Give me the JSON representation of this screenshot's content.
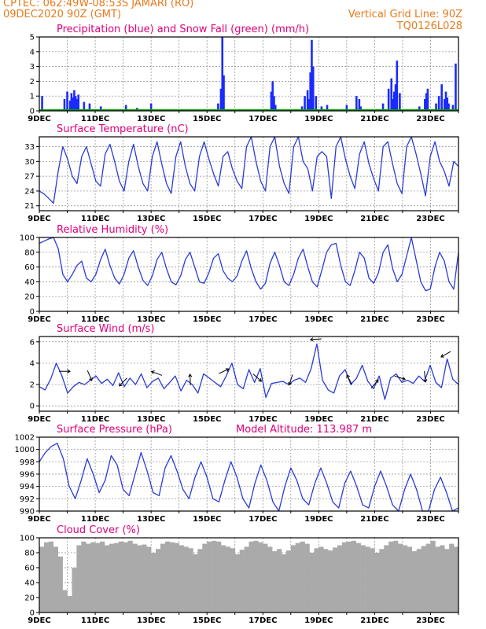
{
  "header": {
    "line1": "CPTEC:   062:49W-08:53S   JAMARI (RO)",
    "line2": "09DEC2020 90Z (GMT)",
    "grid_note": "Vertical Grid Line: 90Z",
    "code": "TQ0126L028"
  },
  "colors": {
    "header": "#e87a1c",
    "title": "#e0007a",
    "precip": "#1a2bff",
    "snow": "#00a000",
    "line": "#2a3bd8",
    "cloud": "#aaaaaa",
    "grid": "#8a8a8a"
  },
  "x_ticks": [
    "9DEC",
    "11DEC",
    "13DEC",
    "15DEC",
    "17DEC",
    "19DEC",
    "21DEC",
    "23DEC"
  ],
  "x_range_days": [
    9,
    24
  ],
  "model_altitude": "Model Altitude: 113.987 m",
  "chart_data": [
    {
      "id": "precip",
      "type": "bar",
      "title": "Precipitation (blue) and Snow Fall (green) (mm/h)",
      "ylim": [
        0,
        5
      ],
      "yticks": [
        "0",
        "1",
        "2",
        "3",
        "4",
        "5"
      ],
      "series": [
        {
          "name": "Precipitation",
          "x": [
            9.1,
            9.9,
            10.0,
            10.1,
            10.15,
            10.2,
            10.25,
            10.3,
            10.35,
            10.4,
            10.6,
            10.8,
            11.2,
            12.1,
            12.5,
            13.0,
            15.4,
            15.5,
            15.55,
            15.6,
            17.3,
            17.35,
            17.4,
            17.45,
            18.4,
            18.5,
            18.6,
            18.65,
            18.7,
            18.75,
            18.8,
            18.9,
            19.1,
            19.3,
            20.0,
            20.35,
            20.45,
            20.5,
            21.3,
            21.5,
            21.6,
            21.65,
            21.7,
            21.75,
            21.8,
            21.9,
            22.6,
            22.8,
            22.85,
            22.9,
            23.2,
            23.3,
            23.4,
            23.5,
            23.55,
            23.6,
            23.65,
            23.8,
            23.9
          ],
          "values": [
            1.0,
            0.8,
            1.3,
            0.7,
            1.2,
            0.9,
            1.4,
            1.0,
            0.8,
            1.1,
            0.6,
            0.5,
            0.3,
            0.4,
            0.2,
            0.5,
            0.5,
            1.5,
            5.0,
            2.4,
            1.3,
            2.0,
            1.0,
            0.4,
            0.3,
            1.0,
            1.4,
            0.8,
            2.6,
            4.8,
            3.0,
            1.0,
            0.3,
            0.4,
            0.4,
            1.0,
            0.8,
            0.3,
            0.5,
            1.5,
            2.2,
            0.8,
            1.3,
            1.8,
            3.4,
            1.2,
            0.3,
            0.8,
            1.2,
            1.5,
            0.5,
            1.0,
            1.8,
            0.8,
            1.3,
            0.9,
            0.5,
            0.4,
            3.2
          ]
        },
        {
          "name": "Snow Fall",
          "x": [
            9.0,
            24.0
          ],
          "values": [
            0,
            0
          ]
        }
      ]
    },
    {
      "id": "temp",
      "type": "line",
      "title": "Surface Temperature (nC)",
      "ylim": [
        20,
        35
      ],
      "yticks": [
        "21",
        "24",
        "27",
        "30",
        "33"
      ],
      "series": [
        {
          "name": "Temperature",
          "values": [
            24.0,
            23.4,
            22.5,
            21.5,
            28.0,
            33.0,
            30.5,
            27.0,
            25.5,
            31.0,
            33.0,
            29.5,
            26.0,
            25.0,
            31.5,
            33.5,
            30.0,
            26.0,
            24.0,
            30.0,
            33.5,
            29.0,
            25.5,
            24.0,
            31.0,
            34.0,
            29.5,
            25.5,
            23.5,
            31.0,
            34.0,
            29.0,
            25.5,
            24.0,
            31.0,
            34.0,
            30.5,
            27.5,
            25.0,
            31.0,
            32.0,
            28.5,
            26.0,
            24.5,
            33.0,
            35.0,
            30.0,
            26.0,
            24.0,
            33.0,
            35.0,
            29.0,
            25.5,
            23.5,
            33.0,
            35.0,
            30.0,
            28.5,
            24.0,
            31.0,
            32.0,
            31.0,
            22.5,
            33.0,
            35.0,
            30.5,
            27.0,
            24.5,
            31.5,
            34.0,
            29.5,
            26.5,
            24.0,
            33.0,
            34.0,
            29.5,
            25.5,
            23.5,
            33.0,
            35.0,
            31.5,
            27.5,
            23.0,
            31.0,
            34.0,
            30.0,
            28.0,
            25.0,
            30.0,
            29.0
          ]
        }
      ]
    },
    {
      "id": "rh",
      "type": "line",
      "title": "Relative Humidity (%)",
      "ylim": [
        0,
        100
      ],
      "yticks": [
        "0",
        "20",
        "40",
        "60",
        "80",
        "100"
      ],
      "series": [
        {
          "name": "Relative Humidity",
          "values": [
            92,
            95,
            98,
            100,
            85,
            50,
            40,
            50,
            62,
            68,
            45,
            40,
            50,
            70,
            84,
            62,
            45,
            37,
            50,
            72,
            82,
            60,
            42,
            35,
            48,
            70,
            80,
            58,
            40,
            36,
            48,
            70,
            80,
            60,
            40,
            38,
            52,
            72,
            78,
            55,
            45,
            40,
            48,
            68,
            82,
            58,
            40,
            30,
            38,
            65,
            80,
            62,
            40,
            35,
            50,
            72,
            84,
            60,
            40,
            33,
            56,
            80,
            90,
            92,
            62,
            40,
            35,
            55,
            80,
            72,
            45,
            38,
            52,
            80,
            90,
            58,
            40,
            50,
            75,
            100,
            70,
            40,
            28,
            30,
            60,
            80,
            68,
            40,
            30,
            80
          ]
        }
      ]
    },
    {
      "id": "wind",
      "type": "line",
      "title": "Surface Wind (m/s)",
      "ylim": [
        -0.5,
        6.5
      ],
      "yticks": [
        "0",
        "2",
        "4",
        "6"
      ],
      "series": [
        {
          "name": "Wind Speed",
          "values": [
            1.8,
            1.5,
            2.5,
            4.0,
            2.8,
            1.2,
            1.8,
            2.2,
            2.0,
            2.4,
            2.8,
            2.1,
            2.5,
            1.9,
            3.1,
            1.8,
            2.6,
            2.0,
            3.0,
            1.7,
            2.3,
            2.6,
            1.6,
            2.2,
            2.8,
            1.4,
            2.4,
            2.0,
            1.2,
            3.0,
            2.6,
            2.2,
            1.8,
            2.8,
            4.0,
            2.0,
            1.6,
            3.4,
            2.2,
            3.5,
            0.8,
            2.1,
            2.2,
            2.3,
            2.0,
            2.4,
            2.6,
            2.2,
            3.5,
            5.8,
            2.4,
            1.5,
            1.2,
            2.8,
            3.4,
            2.0,
            2.6,
            3.8,
            2.3,
            1.6,
            2.8,
            0.6,
            2.6,
            3.0,
            2.2,
            2.4,
            2.1,
            2.8,
            2.3,
            3.8,
            2.2,
            1.7,
            4.4,
            2.5,
            2.0
          ]
        }
      ]
    },
    {
      "id": "pres",
      "type": "line",
      "title": "Surface Pressure (hPa)",
      "ylim": [
        990,
        1002
      ],
      "yticks": [
        "990",
        "992",
        "994",
        "996",
        "998",
        "1000",
        "1002"
      ],
      "series": [
        {
          "name": "Surface Pressure",
          "values": [
            998.0,
            999.5,
            1000.5,
            1001.0,
            998.5,
            994.0,
            992.0,
            995.0,
            998.5,
            996.0,
            993.0,
            995.0,
            999.0,
            997.5,
            993.5,
            992.5,
            996.0,
            999.5,
            996.5,
            993.0,
            992.5,
            997.0,
            999.0,
            996.5,
            993.5,
            992.0,
            995.5,
            998.0,
            995.5,
            992.0,
            991.5,
            995.0,
            998.0,
            995.5,
            992.0,
            990.5,
            994.5,
            997.5,
            995.0,
            991.5,
            990.0,
            994.0,
            997.0,
            995.0,
            992.0,
            991.0,
            994.5,
            997.0,
            994.5,
            991.5,
            990.5,
            994.5,
            996.5,
            994.0,
            991.0,
            990.5,
            994.0,
            996.5,
            994.0,
            991.0,
            990.0,
            993.5,
            996.0,
            993.5,
            990.0,
            989.5,
            993.5,
            995.5,
            993.0,
            990.0,
            990.5
          ]
        }
      ]
    },
    {
      "id": "cloud",
      "type": "area",
      "title": "Cloud Cover (%)",
      "ylim": [
        0,
        100
      ],
      "yticks": [
        "0",
        "20",
        "40",
        "60",
        "80",
        "100"
      ],
      "series": [
        {
          "name": "Cloud Cover",
          "values": [
            88,
            94,
            95,
            88,
            75,
            30,
            22,
            60,
            90,
            95,
            92,
            94,
            93,
            95,
            90,
            92,
            93,
            95,
            94,
            96,
            92,
            90,
            91,
            88,
            80,
            85,
            92,
            95,
            94,
            93,
            90,
            88,
            86,
            78,
            85,
            92,
            95,
            96,
            95,
            90,
            88,
            86,
            78,
            84,
            88,
            95,
            96,
            94,
            92,
            88,
            82,
            85,
            78,
            83,
            90,
            93,
            95,
            92,
            80,
            86,
            88,
            85,
            83,
            87,
            90,
            94,
            95,
            96,
            93,
            90,
            88,
            86,
            80,
            85,
            90,
            95,
            96,
            92,
            90,
            88,
            82,
            85,
            89,
            92,
            96,
            88,
            90,
            85,
            92,
            88
          ]
        }
      ]
    }
  ]
}
